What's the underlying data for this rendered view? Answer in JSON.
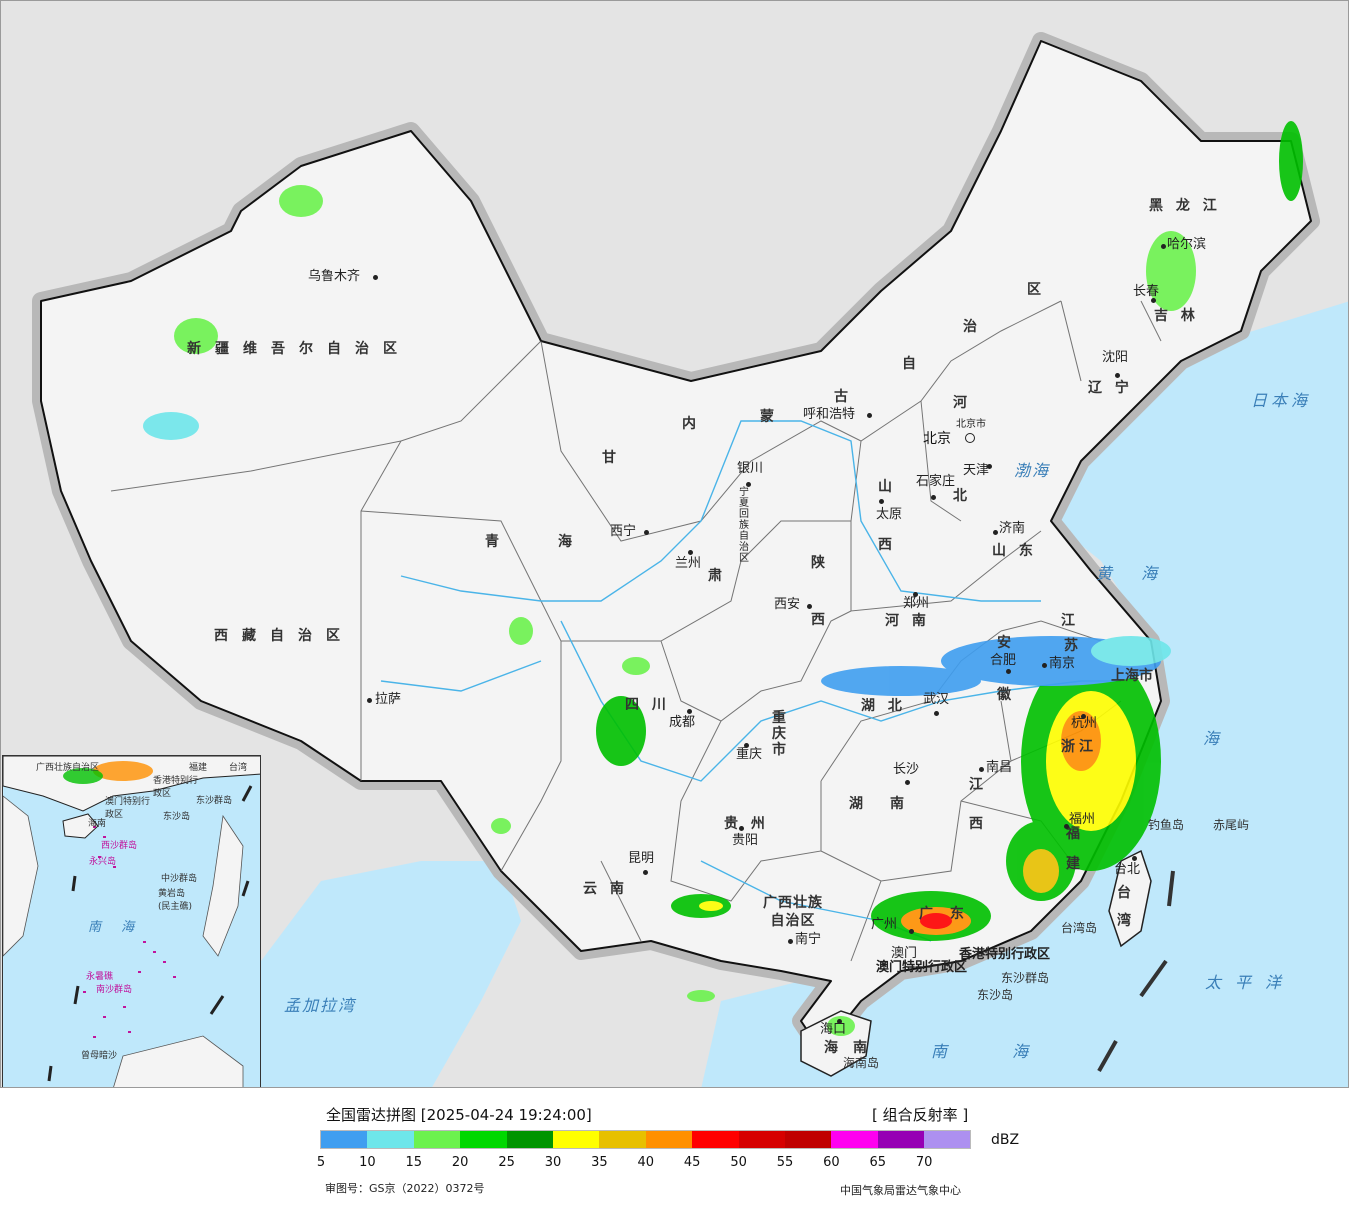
{
  "map": {
    "regions": [
      {
        "id": "xinjiang",
        "label": "新疆维吾尔自治区"
      },
      {
        "id": "xizang",
        "label": "西藏自治区"
      },
      {
        "id": "qinghai1",
        "label": "青"
      },
      {
        "id": "qinghai2",
        "label": "海"
      },
      {
        "id": "gansu1",
        "label": "甘"
      },
      {
        "id": "gansu2",
        "label": "肃"
      },
      {
        "id": "neimenggu1",
        "label": "内"
      },
      {
        "id": "neimenggu2",
        "label": "蒙"
      },
      {
        "id": "neimenggu3",
        "label": "古"
      },
      {
        "id": "neimenggu4",
        "label": "自"
      },
      {
        "id": "neimenggu5",
        "label": "治"
      },
      {
        "id": "neimenggu6",
        "label": "区"
      },
      {
        "id": "heilongjiang",
        "label": "黑 龙 江"
      },
      {
        "id": "jilin",
        "label": "吉 林"
      },
      {
        "id": "liaoning",
        "label": "辽 宁"
      },
      {
        "id": "hebei1",
        "label": "河"
      },
      {
        "id": "hebei2",
        "label": "北"
      },
      {
        "id": "shanxi1",
        "label": "山"
      },
      {
        "id": "shanxi2",
        "label": "西"
      },
      {
        "id": "shaanxi1",
        "label": "陕"
      },
      {
        "id": "shaanxi2",
        "label": "西"
      },
      {
        "id": "shandong",
        "label": "山 东"
      },
      {
        "id": "henan",
        "label": "河 南"
      },
      {
        "id": "jiangsu1",
        "label": "江"
      },
      {
        "id": "jiangsu2",
        "label": "苏"
      },
      {
        "id": "anhui1",
        "label": "安"
      },
      {
        "id": "anhui2",
        "label": "徽"
      },
      {
        "id": "hubei",
        "label": "湖 北"
      },
      {
        "id": "sichuan",
        "label": "四 川"
      },
      {
        "id": "chongqing",
        "label": "重庆市"
      },
      {
        "id": "guizhou",
        "label": "贵 州"
      },
      {
        "id": "yunnan",
        "label": "云 南"
      },
      {
        "id": "hunan1",
        "label": "湖"
      },
      {
        "id": "hunan2",
        "label": "南"
      },
      {
        "id": "jiangxi1",
        "label": "江"
      },
      {
        "id": "jiangxi2",
        "label": "西"
      },
      {
        "id": "zhejiang",
        "label": "浙江"
      },
      {
        "id": "fujian",
        "label": "福 建"
      },
      {
        "id": "guangxi",
        "label": "广西壮族\n自治区"
      },
      {
        "id": "guangdong",
        "label": "广 东"
      },
      {
        "id": "taiwan",
        "label": "台湾"
      },
      {
        "id": "hainan1",
        "label": "海"
      },
      {
        "id": "hainan2",
        "label": "南"
      },
      {
        "id": "shanghai",
        "label": "上海市"
      },
      {
        "id": "ningxia",
        "label": "宁夏回族自治区"
      },
      {
        "id": "hk",
        "label": "香港特别行政区"
      },
      {
        "id": "macau",
        "label": "澳门特别行政区"
      }
    ],
    "cities": [
      {
        "id": "urumqi",
        "label": "乌鲁木齐"
      },
      {
        "id": "lhasa",
        "label": "拉萨"
      },
      {
        "id": "xining",
        "label": "西宁"
      },
      {
        "id": "lanzhou",
        "label": "兰州"
      },
      {
        "id": "yinchuan",
        "label": "银川"
      },
      {
        "id": "hohhot",
        "label": "呼和浩特"
      },
      {
        "id": "harbin",
        "label": "哈尔滨"
      },
      {
        "id": "changchun",
        "label": "长春"
      },
      {
        "id": "shenyang",
        "label": "沈阳"
      },
      {
        "id": "beijing",
        "label": "北京"
      },
      {
        "id": "beijingshi",
        "label": "北京市"
      },
      {
        "id": "tianjin",
        "label": "天津"
      },
      {
        "id": "shijiazhuang",
        "label": "石家庄"
      },
      {
        "id": "taiyuan",
        "label": "太原"
      },
      {
        "id": "jinan",
        "label": "济南"
      },
      {
        "id": "zhengzhou",
        "label": "郑州"
      },
      {
        "id": "xian",
        "label": "西安"
      },
      {
        "id": "hefei",
        "label": "合肥"
      },
      {
        "id": "nanjing",
        "label": "南京"
      },
      {
        "id": "wuhan",
        "label": "武汉"
      },
      {
        "id": "chengdu",
        "label": "成都"
      },
      {
        "id": "chongqing",
        "label": "重庆"
      },
      {
        "id": "guiyang",
        "label": "贵阳"
      },
      {
        "id": "kunming",
        "label": "昆明"
      },
      {
        "id": "changsha",
        "label": "长沙"
      },
      {
        "id": "nanchang",
        "label": "南昌"
      },
      {
        "id": "hangzhou",
        "label": "杭州"
      },
      {
        "id": "fuzhou",
        "label": "福州"
      },
      {
        "id": "nanning",
        "label": "南宁"
      },
      {
        "id": "guangzhou",
        "label": "广州"
      },
      {
        "id": "aomen",
        "label": "澳门"
      },
      {
        "id": "taibei",
        "label": "台北"
      },
      {
        "id": "haikou",
        "label": "海口"
      }
    ],
    "seas": [
      {
        "id": "bohai",
        "label": "渤海"
      },
      {
        "id": "huanghai",
        "label": "黄 海"
      },
      {
        "id": "donghai",
        "label": "海"
      },
      {
        "id": "riben",
        "label": "日本海"
      },
      {
        "id": "taipingyang",
        "label": "太平洋"
      },
      {
        "id": "nanhai",
        "label": "南 海"
      },
      {
        "id": "mengjiala",
        "label": "孟加拉湾"
      }
    ],
    "islands": [
      {
        "id": "diaoyu",
        "label": "钓鱼岛"
      },
      {
        "id": "chiwei",
        "label": "赤尾屿"
      },
      {
        "id": "taiwandao",
        "label": "台湾岛"
      },
      {
        "id": "dongsha_qd",
        "label": "东沙群岛"
      },
      {
        "id": "dongsha",
        "label": "东沙岛"
      },
      {
        "id": "hainandao",
        "label": "海南岛"
      }
    ]
  },
  "inset": {
    "labels": [
      {
        "id": "i_gx",
        "label": "广西壮族自治区"
      },
      {
        "id": "i_tw",
        "label": "台湾"
      },
      {
        "id": "i_fj",
        "label": "福建"
      },
      {
        "id": "i_hk",
        "label": "香港特别行政区"
      },
      {
        "id": "i_mo",
        "label": "澳门特别行政区"
      },
      {
        "id": "i_dsqd",
        "label": "东沙群岛"
      },
      {
        "id": "i_ds",
        "label": "东沙岛"
      },
      {
        "id": "i_hainan",
        "label": "海南"
      },
      {
        "id": "i_xsqd",
        "label": "西沙群岛"
      },
      {
        "id": "i_yongxing",
        "label": "永兴岛"
      },
      {
        "id": "i_zsqd",
        "label": "中沙群岛"
      },
      {
        "id": "i_huangyan",
        "label": "黄岩岛\n(民主礁)"
      },
      {
        "id": "i_yongshu",
        "label": "永暑礁"
      },
      {
        "id": "i_nsqd",
        "label": "南沙群岛"
      },
      {
        "id": "i_zengmu",
        "label": "曾母暗沙"
      }
    ],
    "sea_label": "南 海"
  },
  "legend": {
    "title": "全国雷达拼图 [2025-04-24 19:24:00]",
    "product": "[ 组合反射率 ]",
    "unit": "dBZ",
    "approval": "审图号：GS京（2022）0372号",
    "agency": "中国气象局雷达气象中心",
    "colors": [
      "#3f9ef0",
      "#6ee6ea",
      "#6cf24e",
      "#00d800",
      "#009400",
      "#ffff00",
      "#e7c000",
      "#ff9000",
      "#ff0000",
      "#d60000",
      "#c00000",
      "#ff00f0",
      "#9600b4",
      "#ad90f0"
    ],
    "ticks": [
      "5",
      "10",
      "15",
      "20",
      "25",
      "30",
      "35",
      "40",
      "45",
      "50",
      "55",
      "60",
      "65",
      "70"
    ]
  }
}
